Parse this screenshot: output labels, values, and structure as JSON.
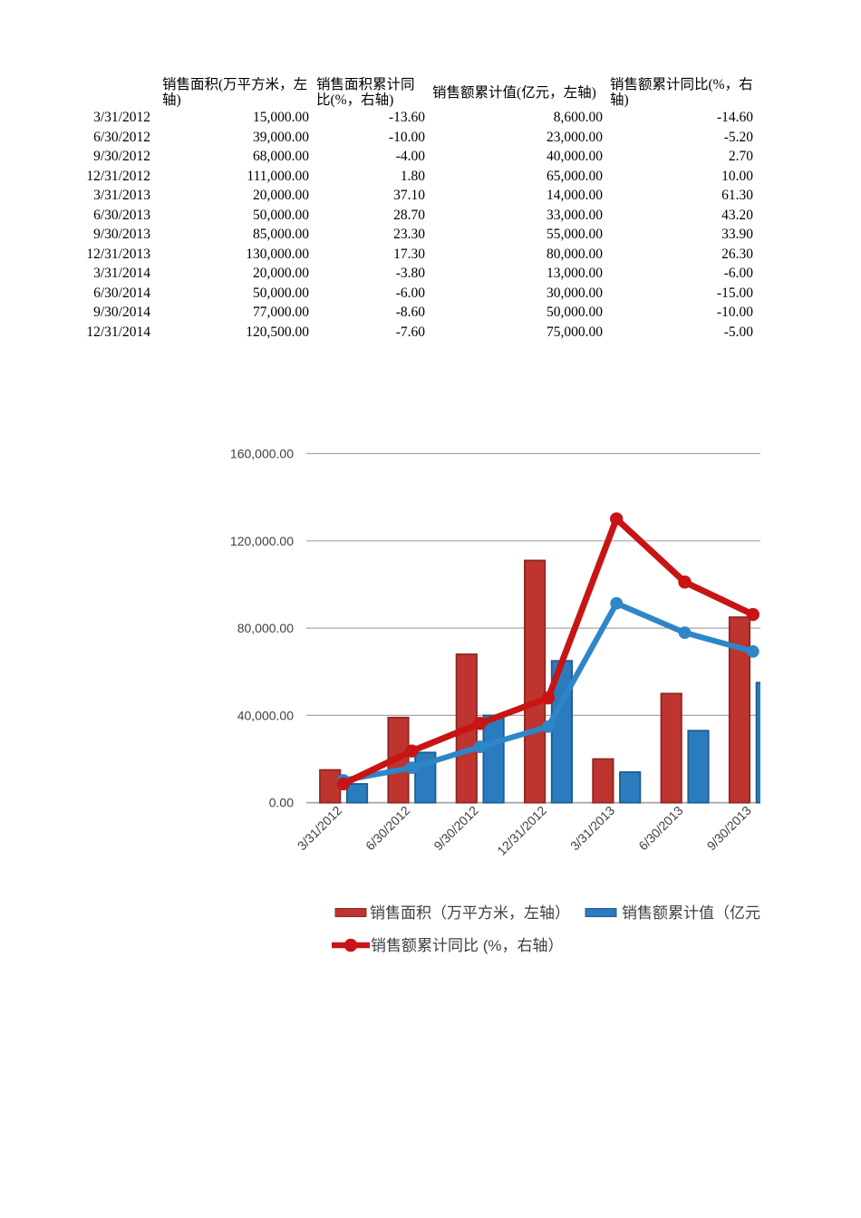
{
  "table": {
    "columns": [
      "销售面积(万平方米，左轴)",
      "销售面积累计同比(%，右轴)",
      "销售额累计值(亿元，左轴)",
      "销售额累计同比(%，右轴)"
    ],
    "rows": [
      {
        "date": "3/31/2012",
        "values": [
          "15,000.00",
          "-13.60",
          "8,600.00",
          "-14.60"
        ]
      },
      {
        "date": "6/30/2012",
        "values": [
          "39,000.00",
          "-10.00",
          "23,000.00",
          "-5.20"
        ]
      },
      {
        "date": "9/30/2012",
        "values": [
          "68,000.00",
          "-4.00",
          "40,000.00",
          "2.70"
        ]
      },
      {
        "date": "12/31/2012",
        "values": [
          "111,000.00",
          "1.80",
          "65,000.00",
          "10.00"
        ]
      },
      {
        "date": "3/31/2013",
        "values": [
          "20,000.00",
          "37.10",
          "14,000.00",
          "61.30"
        ]
      },
      {
        "date": "6/30/2013",
        "values": [
          "50,000.00",
          "28.70",
          "33,000.00",
          "43.20"
        ]
      },
      {
        "date": "9/30/2013",
        "values": [
          "85,000.00",
          "23.30",
          "55,000.00",
          "33.90"
        ]
      },
      {
        "date": "12/31/2013",
        "values": [
          "130,000.00",
          "17.30",
          "80,000.00",
          "26.30"
        ]
      },
      {
        "date": "3/31/2014",
        "values": [
          "20,000.00",
          "-3.80",
          "13,000.00",
          "-6.00"
        ]
      },
      {
        "date": "6/30/2014",
        "values": [
          "50,000.00",
          "-6.00",
          "30,000.00",
          "-15.00"
        ]
      },
      {
        "date": "9/30/2014",
        "values": [
          "77,000.00",
          "-8.60",
          "50,000.00",
          "-10.00"
        ]
      },
      {
        "date": "12/31/2014",
        "values": [
          "120,500.00",
          "-7.60",
          "75,000.00",
          "-5.00"
        ]
      }
    ]
  },
  "chart_data": {
    "type": "combo",
    "categories": [
      "3/31/2012",
      "6/30/2012",
      "9/30/2012",
      "12/31/2012",
      "3/31/2013",
      "6/30/2013",
      "9/30/2013"
    ],
    "series": [
      {
        "name": "销售面积（万平方米，左轴）",
        "type": "bar",
        "axis": "left",
        "color": "#BE342E",
        "border_color": "#8F2723",
        "values": [
          15000,
          39000,
          68000,
          111000,
          20000,
          50000,
          85000
        ]
      },
      {
        "name": "销售额累计值（亿元",
        "type": "bar",
        "axis": "left",
        "color": "#2B7CBE",
        "border_color": "#1E5C8F",
        "values": [
          8600,
          23000,
          40000,
          65000,
          14000,
          33000,
          55000
        ]
      },
      {
        "name": "销售额累计同比 (%，右轴）",
        "type": "line",
        "axis": "right",
        "color": "#C81414",
        "values": [
          -14.6,
          -5.2,
          2.7,
          10.0,
          61.3,
          43.2,
          33.9
        ]
      },
      {
        "name": "销售面积累计同比(%，右轴)",
        "type": "line",
        "axis": "right",
        "color": "#2F86C7",
        "values": [
          -13.6,
          -10.0,
          -4.0,
          1.8,
          37.1,
          28.7,
          23.3
        ],
        "in_visible_legend": false
      }
    ],
    "left_axis": {
      "min": 0,
      "max": 160000,
      "tick_labels": [
        "0.00",
        "40,000.00",
        "80,000.00",
        "120,000.00",
        "160,000.00"
      ]
    },
    "right_axis": {
      "min": -20,
      "max": 80,
      "visible": false
    },
    "grid": "horizontal",
    "legend_position": "bottom"
  }
}
